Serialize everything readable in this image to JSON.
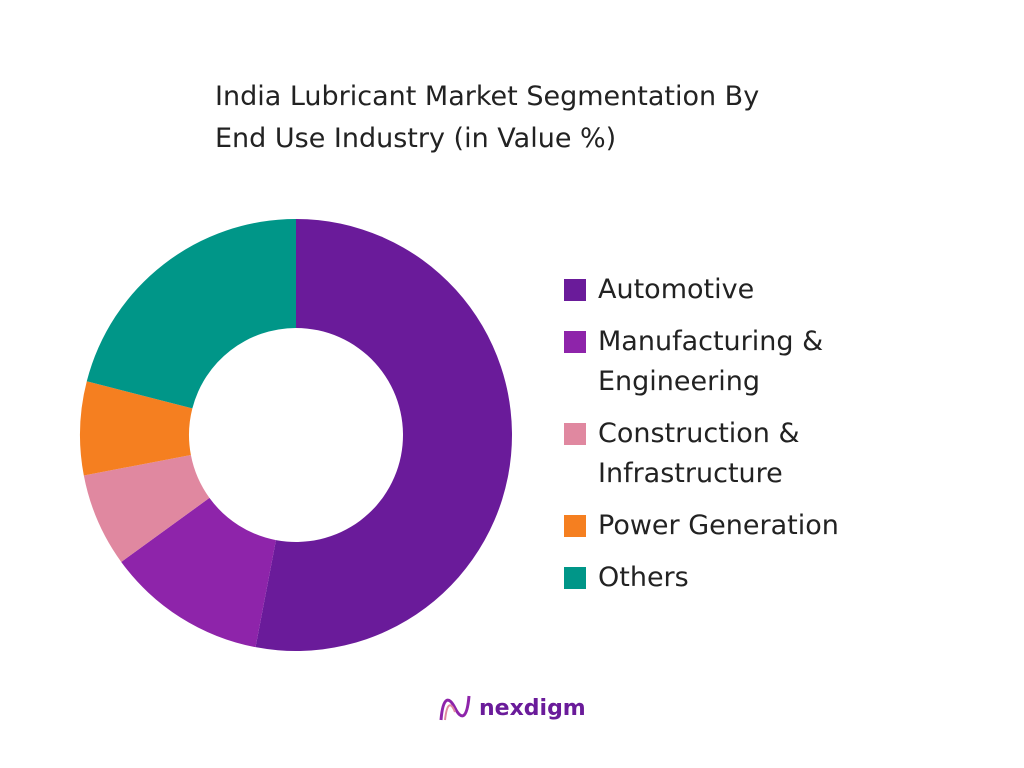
{
  "chart_data": {
    "type": "donut",
    "title": "India Lubricant Market Segmentation By End Use Industry (in Value %)",
    "categories": [
      "Automotive",
      "Manufacturing & Engineering",
      "Construction & Infrastructure",
      "Power Generation",
      "Others"
    ],
    "values": [
      53,
      12,
      7,
      7,
      21
    ],
    "colors": [
      "#6a1b9a",
      "#8e24aa",
      "#e088a0",
      "#f57f20",
      "#009688"
    ]
  },
  "brand": "nexdigm"
}
